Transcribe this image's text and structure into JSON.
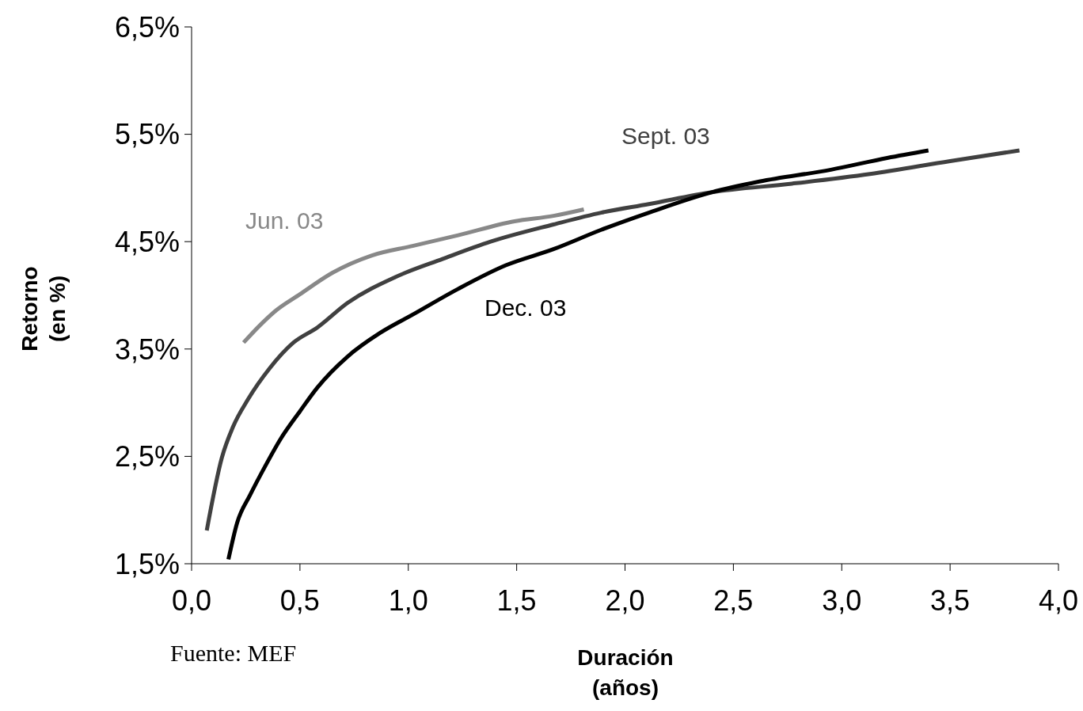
{
  "chart_data": {
    "type": "line",
    "xlabel": "Duración\n(años)",
    "ylabel": "Retorno\n(en %)",
    "annotations": [
      "Fuente: MEF"
    ],
    "xlim": [
      0,
      4
    ],
    "xticks": [
      {
        "value": 0,
        "label": "0,0"
      },
      {
        "value": 0.5,
        "label": "0,5"
      },
      {
        "value": 1,
        "label": "1,0"
      },
      {
        "value": 1.5,
        "label": "1,5"
      },
      {
        "value": 2,
        "label": "2,0"
      },
      {
        "value": 2.5,
        "label": "2,5"
      },
      {
        "value": 3,
        "label": "3,0"
      },
      {
        "value": 3.5,
        "label": "3,5"
      },
      {
        "value": 4,
        "label": "4,0"
      }
    ],
    "ylim": [
      1.5,
      6.5
    ],
    "yticks": [
      {
        "value": 1.5,
        "label": "1,5%"
      },
      {
        "value": 2.5,
        "label": "2,5%"
      },
      {
        "value": 3.5,
        "label": "3,5%"
      },
      {
        "value": 4.5,
        "label": "4,5%"
      },
      {
        "value": 5.5,
        "label": "5,5%"
      },
      {
        "value": 6.5,
        "label": "6,5%"
      }
    ],
    "grid": false,
    "legend": false,
    "marker": "none",
    "line_style": "solid",
    "series": [
      {
        "name": "Jun. 03",
        "color": "#888888",
        "x": [
          0.24,
          0.32,
          0.39,
          0.5,
          0.65,
          0.83,
          1.02,
          1.23,
          1.49,
          1.67,
          1.81
        ],
        "values": [
          3.56,
          3.73,
          3.86,
          4.01,
          4.21,
          4.37,
          4.46,
          4.56,
          4.69,
          4.74,
          4.8
        ]
      },
      {
        "name": "Sept. 03",
        "color": "#404040",
        "x": [
          0.07,
          0.14,
          0.19,
          0.26,
          0.36,
          0.47,
          0.58,
          0.72,
          0.94,
          1.16,
          1.38,
          1.67,
          1.89,
          2.11,
          2.4,
          2.77,
          3.13,
          3.5,
          3.82
        ],
        "values": [
          1.81,
          2.49,
          2.77,
          3.03,
          3.32,
          3.56,
          3.7,
          3.93,
          4.17,
          4.34,
          4.5,
          4.66,
          4.77,
          4.85,
          4.96,
          5.04,
          5.13,
          5.25,
          5.35
        ]
      },
      {
        "name": "Dec. 03",
        "color": "#000000",
        "x": [
          0.17,
          0.21,
          0.27,
          0.34,
          0.41,
          0.5,
          0.58,
          0.72,
          0.87,
          1.02,
          1.23,
          1.45,
          1.67,
          1.89,
          2.11,
          2.4,
          2.62,
          2.95,
          3.21,
          3.4
        ],
        "values": [
          1.54,
          1.88,
          2.14,
          2.41,
          2.66,
          2.92,
          3.14,
          3.43,
          3.65,
          3.82,
          4.06,
          4.28,
          4.43,
          4.61,
          4.77,
          4.96,
          5.06,
          5.17,
          5.28,
          5.35
        ]
      }
    ]
  }
}
